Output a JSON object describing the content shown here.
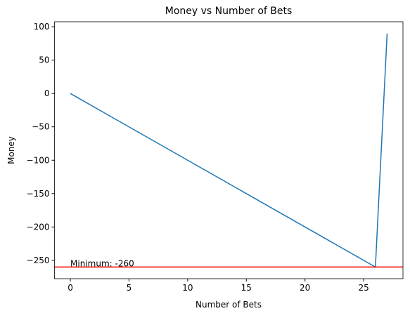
{
  "chart_data": {
    "type": "line",
    "title": "Money vs Number of Bets",
    "xlabel": "Number of Bets",
    "ylabel": "Money",
    "x": [
      0,
      1,
      2,
      3,
      4,
      5,
      6,
      7,
      8,
      9,
      10,
      11,
      12,
      13,
      14,
      15,
      16,
      17,
      18,
      19,
      20,
      21,
      22,
      23,
      24,
      25,
      26,
      27
    ],
    "series": [
      {
        "name": "Money",
        "color": "#1f77b4",
        "values": [
          0,
          -10,
          -20,
          -30,
          -40,
          -50,
          -60,
          -70,
          -80,
          -90,
          -100,
          -110,
          -120,
          -130,
          -140,
          -150,
          -160,
          -170,
          -180,
          -190,
          -200,
          -210,
          -220,
          -230,
          -240,
          -250,
          -260,
          90
        ]
      }
    ],
    "hlines": [
      {
        "y": -260,
        "color": "#ff0000"
      }
    ],
    "annotations": [
      {
        "text": "Minimum: -260",
        "x": 0,
        "y": -260
      }
    ],
    "xlim": [
      -1.35,
      28.35
    ],
    "xticks": [
      0,
      5,
      10,
      15,
      20,
      25
    ],
    "ylim": [
      -277.5,
      107.5
    ],
    "yticks": [
      {
        "value": -250,
        "label": "−250"
      },
      {
        "value": -200,
        "label": "−200"
      },
      {
        "value": -150,
        "label": "−150"
      },
      {
        "value": -100,
        "label": "−100"
      },
      {
        "value": -50,
        "label": "−50"
      },
      0,
      50,
      100
    ],
    "grid": false
  }
}
